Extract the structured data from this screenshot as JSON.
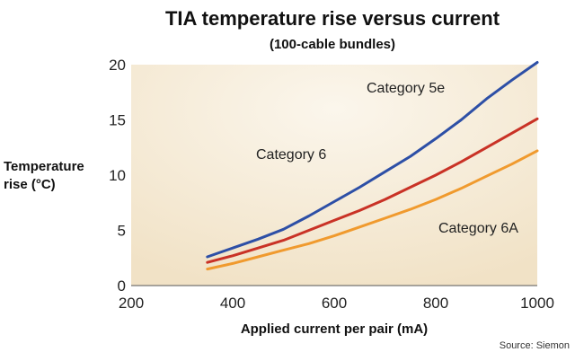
{
  "chart_data": {
    "type": "line",
    "title": "TIA temperature rise versus current",
    "subtitle": "(100-cable bundles)",
    "xlabel": "Applied current per pair (mA)",
    "ylabel_line1": "Temperature",
    "ylabel_line2": "rise (°C)",
    "source": "Source: Siemon",
    "xlim": [
      200,
      1000
    ],
    "ylim": [
      0,
      20
    ],
    "xticks": [
      200,
      400,
      600,
      800,
      1000
    ],
    "yticks": [
      0,
      5,
      10,
      15,
      20
    ],
    "grid": false,
    "series": [
      {
        "name": "Category 5e",
        "color": "#2d4fa6",
        "x": [
          350,
          400,
          450,
          500,
          550,
          600,
          650,
          700,
          750,
          800,
          850,
          900,
          950,
          1000
        ],
        "y": [
          2.6,
          3.4,
          4.2,
          5.1,
          6.3,
          7.6,
          8.9,
          10.3,
          11.7,
          13.3,
          15.0,
          16.9,
          18.6,
          20.2
        ]
      },
      {
        "name": "Category 6",
        "color": "#c93226",
        "x": [
          350,
          400,
          450,
          500,
          550,
          600,
          650,
          700,
          750,
          800,
          850,
          900,
          950,
          1000
        ],
        "y": [
          2.1,
          2.7,
          3.4,
          4.1,
          5.0,
          5.9,
          6.8,
          7.8,
          8.9,
          10.0,
          11.2,
          12.5,
          13.8,
          15.1
        ]
      },
      {
        "name": "Category 6A",
        "color": "#f09a2e",
        "x": [
          350,
          400,
          450,
          500,
          550,
          600,
          650,
          700,
          750,
          800,
          850,
          900,
          950,
          1000
        ],
        "y": [
          1.5,
          2.0,
          2.6,
          3.2,
          3.8,
          4.5,
          5.3,
          6.1,
          6.9,
          7.8,
          8.8,
          9.9,
          11.0,
          12.2
        ]
      }
    ]
  }
}
